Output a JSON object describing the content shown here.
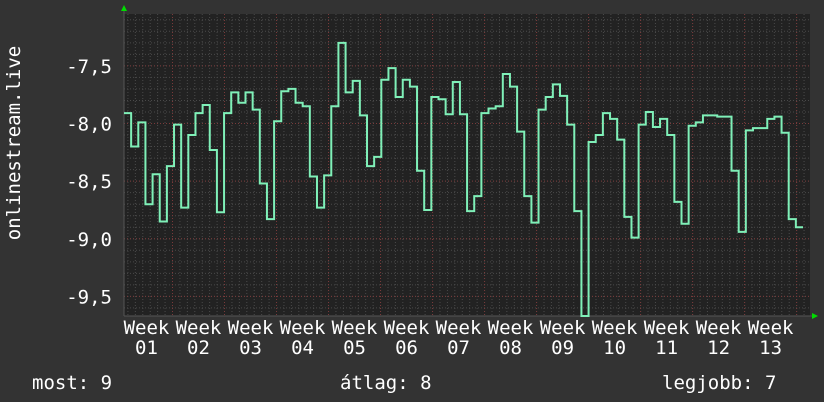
{
  "chart_data": {
    "type": "line",
    "ylabel": "onlinestream.live",
    "ylim": [
      -9.67,
      -7.05
    ],
    "yticks": [
      -7.5,
      -8.0,
      -8.5,
      -9.0,
      -9.5
    ],
    "ytick_labels": [
      "-7,5",
      "-8,0",
      "-8,5",
      "-9,0",
      "-9,5"
    ],
    "xtick_labels": [
      "Week 01",
      "Week 02",
      "Week 03",
      "Week 04",
      "Week 05",
      "Week 06",
      "Week 07",
      "Week 08",
      "Week 09",
      "Week 10",
      "Week 11",
      "Week 12",
      "Week 13"
    ],
    "grid": true,
    "step": true,
    "series": [
      {
        "color": "#7ff0b8",
        "values": [
          -7.91,
          -8.2,
          -7.99,
          -8.7,
          -8.44,
          -8.85,
          -8.37,
          -8.01,
          -8.73,
          -8.1,
          -7.91,
          -7.84,
          -8.23,
          -8.77,
          -7.91,
          -7.73,
          -7.82,
          -7.73,
          -7.88,
          -8.52,
          -8.83,
          -7.98,
          -7.72,
          -7.7,
          -7.82,
          -7.85,
          -8.46,
          -8.73,
          -8.45,
          -7.85,
          -7.3,
          -7.73,
          -7.63,
          -7.93,
          -8.37,
          -8.29,
          -7.62,
          -7.52,
          -7.77,
          -7.62,
          -7.68,
          -8.41,
          -8.75,
          -7.77,
          -7.79,
          -7.92,
          -7.64,
          -7.92,
          -8.76,
          -8.63,
          -7.91,
          -7.87,
          -7.85,
          -7.57,
          -7.68,
          -8.07,
          -8.63,
          -8.86,
          -7.88,
          -7.77,
          -7.66,
          -7.76,
          -8.01,
          -8.76,
          -9.67,
          -8.16,
          -8.1,
          -7.91,
          -7.96,
          -8.14,
          -8.81,
          -8.99,
          -8.01,
          -7.9,
          -8.03,
          -7.96,
          -8.1,
          -8.68,
          -8.87,
          -8.02,
          -7.99,
          -7.93,
          -7.93,
          -7.94,
          -7.94,
          -8.41,
          -8.94,
          -8.06,
          -8.04,
          -8.04,
          -7.96,
          -7.94,
          -8.08,
          -8.83,
          -8.9
        ]
      }
    ],
    "colors": {
      "background": "#333333",
      "plot_background": "#222222",
      "major_grid": "#7a3a3a",
      "minor_grid": "#4a4a4a",
      "arrow": "#00dd00"
    }
  },
  "legend": {
    "current": "most: 9",
    "average": "átlag: 8",
    "best": "legjobb: 7"
  }
}
